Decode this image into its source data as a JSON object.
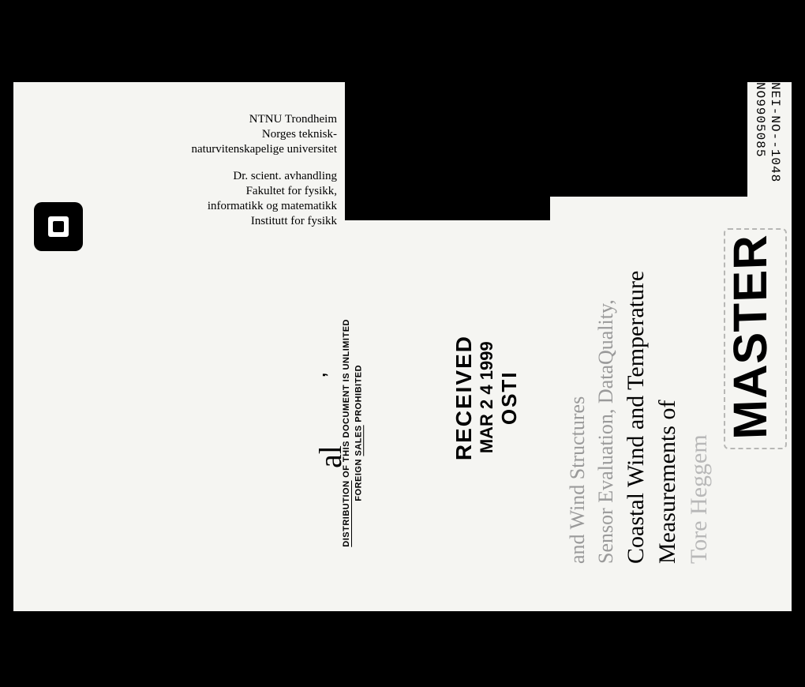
{
  "page": {
    "background": "#f5f5f2",
    "outer_background": "#000000"
  },
  "institution": {
    "line1": "NTNU Trondheim",
    "line2": "Norges teknisk-",
    "line3": "naturvitenskapelige universitet",
    "line4": "Dr. scient. avhandling",
    "line5": "Fakultet for fysikk,",
    "line6": "informatikk og matematikk",
    "line7": "Institutt for fysikk"
  },
  "report_numbers": {
    "line1": "NEI-NO--1048",
    "line2": "NO9905085"
  },
  "master_stamp": "MASTER",
  "author": "Tore Heggem",
  "title": {
    "line1": "Measurements of",
    "line2": "Coastal Wind and Temperature"
  },
  "subtitle": {
    "line1": "Sensor Evaluation, DataQuality,",
    "line2": "and Wind Structures"
  },
  "received": {
    "label": "RECEIVED",
    "date": "MAR 2 4 1999",
    "org": "OSTI"
  },
  "distribution": {
    "line1_a": "DISTRIBUTION",
    "line1_b": " OF THIS DOCUMENT IS UNLIMITED",
    "line2_a": "FOREIGN ",
    "line2_b": "SALES",
    "line2_c": " PROHIBITED"
  },
  "initials": "al",
  "colors": {
    "text": "#000000",
    "faded": "#9a9a9a",
    "author_faded": "#b8b8b8"
  }
}
